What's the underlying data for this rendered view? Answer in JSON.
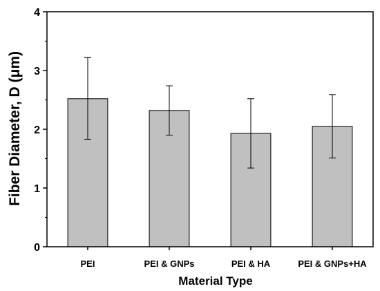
{
  "chart_data": {
    "type": "bar",
    "categories": [
      "PEI",
      "PEI & GNPs",
      "PEI & HA",
      "PEI & GNPs+HA"
    ],
    "values": [
      2.52,
      2.32,
      1.93,
      2.05
    ],
    "error_low": [
      1.83,
      1.9,
      1.34,
      1.51
    ],
    "error_high": [
      3.22,
      2.74,
      2.52,
      2.59
    ],
    "ylim": [
      0,
      4
    ],
    "yticks": [
      "0",
      "1",
      "2",
      "3",
      "4"
    ],
    "xlabel": "Material Type",
    "ylabel": "Fiber Diameter, D (μm)",
    "bar_color": "#c0c0c0",
    "grid": false,
    "legend": "none"
  }
}
